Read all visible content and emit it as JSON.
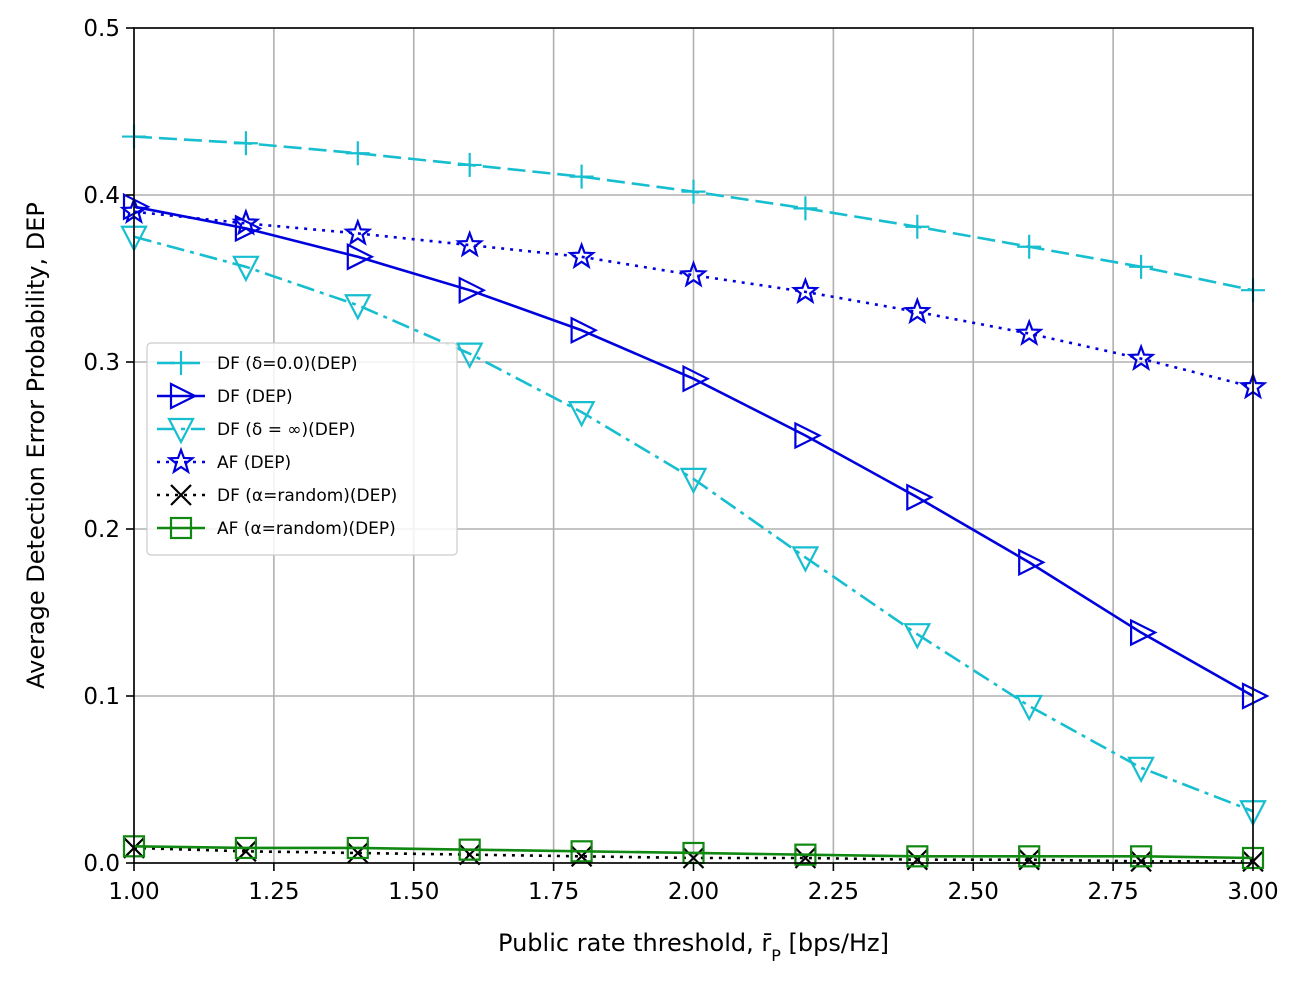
{
  "chart_data": {
    "type": "line",
    "title": "",
    "xlabel": "Public rate threshold, r̄",
    "xlabel_sub": "P",
    "xlabel_suffix": " [bps/Hz]",
    "ylabel": "Average Detection Error Probability, DEP",
    "xlim": [
      1.0,
      3.0
    ],
    "ylim": [
      0.0,
      0.5
    ],
    "xticks": [
      1.0,
      1.25,
      1.5,
      1.75,
      2.0,
      2.25,
      2.5,
      2.75,
      3.0
    ],
    "xtick_labels": [
      "1.00",
      "1.25",
      "1.50",
      "1.75",
      "2.00",
      "2.25",
      "2.50",
      "2.75",
      "3.00"
    ],
    "yticks": [
      0.0,
      0.1,
      0.2,
      0.3,
      0.4,
      0.5
    ],
    "ytick_labels": [
      "0.0",
      "0.1",
      "0.2",
      "0.3",
      "0.4",
      "0.5"
    ],
    "grid": true,
    "legend_position": "center-left",
    "x": [
      1.0,
      1.2,
      1.4,
      1.6,
      1.8,
      2.0,
      2.2,
      2.4,
      2.6,
      2.8,
      3.0
    ],
    "series": [
      {
        "name": "DF (δ=0.0)(DEP)",
        "color": "#17becf",
        "dash": "dashed",
        "marker": "plus",
        "values": [
          0.435,
          0.431,
          0.425,
          0.418,
          0.411,
          0.402,
          0.392,
          0.381,
          0.369,
          0.357,
          0.343
        ]
      },
      {
        "name": "DF (DEP)",
        "color": "#0000dd",
        "dash": "solid",
        "marker": "triangle-right",
        "values": [
          0.393,
          0.38,
          0.363,
          0.343,
          0.319,
          0.29,
          0.256,
          0.219,
          0.18,
          0.138,
          0.1
        ]
      },
      {
        "name": "DF (δ = ∞)(DEP)",
        "color": "#17becf",
        "dash": "dashdot",
        "marker": "triangle-down",
        "values": [
          0.375,
          0.357,
          0.334,
          0.305,
          0.27,
          0.23,
          0.183,
          0.137,
          0.094,
          0.057,
          0.031
        ]
      },
      {
        "name": "AF (DEP)",
        "color": "#0000dd",
        "dash": "dotted",
        "marker": "star",
        "values": [
          0.39,
          0.383,
          0.377,
          0.37,
          0.363,
          0.352,
          0.342,
          0.33,
          0.317,
          0.302,
          0.285
        ]
      },
      {
        "name": "DF (α=random)(DEP)",
        "color": "#000000",
        "dash": "dotted",
        "marker": "x",
        "values": [
          0.009,
          0.007,
          0.006,
          0.005,
          0.004,
          0.003,
          0.003,
          0.002,
          0.002,
          0.001,
          0.001
        ]
      },
      {
        "name": "AF (α=random)(DEP)",
        "color": "#118811",
        "dash": "solid",
        "marker": "square",
        "values": [
          0.01,
          0.009,
          0.009,
          0.008,
          0.007,
          0.006,
          0.005,
          0.004,
          0.004,
          0.004,
          0.003
        ]
      }
    ]
  }
}
